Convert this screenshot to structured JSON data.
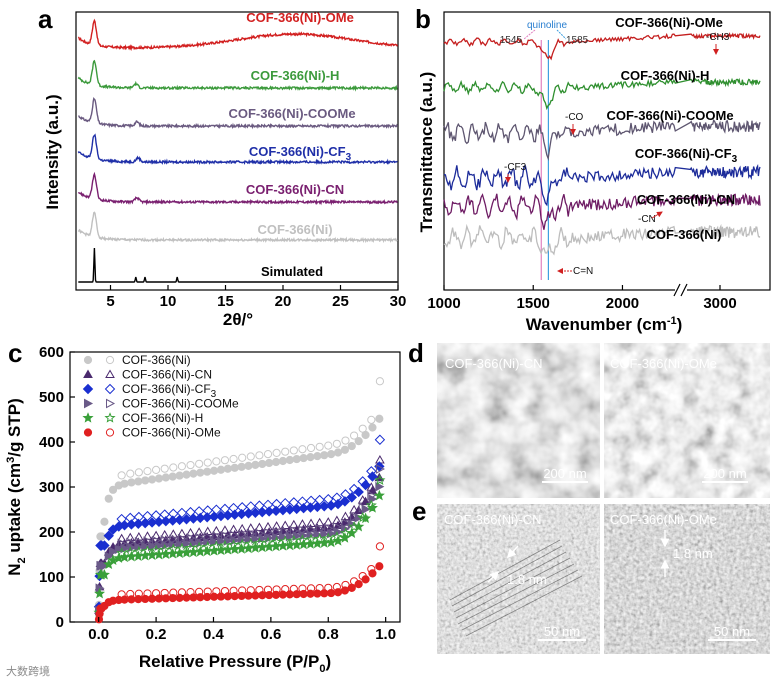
{
  "panel_labels": {
    "a": "a",
    "b": "b",
    "c": "c",
    "d": "d",
    "e": "e"
  },
  "chart_data": [
    {
      "type": "line",
      "panel": "a",
      "xlabel": "2θ/°",
      "ylabel": "Intensity (a.u.)",
      "xlim": [
        2,
        30
      ],
      "xticks": [
        5,
        10,
        15,
        20,
        25,
        30
      ],
      "series": [
        {
          "name": "COF-366(Ni)-OMe",
          "color": "#d22020",
          "peaks": [
            3.6
          ],
          "halo": true
        },
        {
          "name": "COF-366(Ni)-H",
          "color": "#3c9a3c",
          "peaks": [
            3.6,
            7.2
          ]
        },
        {
          "name": "COF-366(Ni)-COOMe",
          "color": "#6a5a80",
          "peaks": [
            3.6,
            7.3
          ]
        },
        {
          "name": "COF-366(Ni)-CF3",
          "label_main": "COF-366(Ni)-CF",
          "label_sub": "3",
          "color": "#1f2fa8",
          "peaks": [
            3.6,
            7.4
          ]
        },
        {
          "name": "COF-366(Ni)-CN",
          "color": "#7a2070",
          "peaks": [
            3.6,
            7.3
          ]
        },
        {
          "name": "COF-366(Ni)",
          "color": "#c0c0c0",
          "peaks": [
            3.6
          ]
        },
        {
          "name": "Simulated",
          "color": "#000000",
          "peaks": [
            3.6,
            7.2,
            8.0,
            10.8
          ]
        }
      ]
    },
    {
      "type": "line",
      "panel": "b",
      "xlabel_main": "Wavenumber (cm",
      "xlabel_sup": "-1",
      "xlabel_end": ")",
      "ylabel": "Transmittance (a.u.)",
      "xticks": [
        1000,
        1500,
        2000,
        3000
      ],
      "axis_break": true,
      "markers": [
        {
          "label": "1545",
          "wavenumber": 1545,
          "color": "#e080c0"
        },
        {
          "label": "1585",
          "wavenumber": 1585,
          "color": "#40a0e0"
        }
      ],
      "marker_title": "quinoline",
      "annotations": [
        "-CH3",
        "-CO",
        "-CF3",
        "-CN",
        "C=N"
      ],
      "series": [
        {
          "name": "COF-366(Ni)-OMe",
          "color": "#c41e1e"
        },
        {
          "name": "COF-366(Ni)-H",
          "color": "#2f8f2f"
        },
        {
          "name": "COF-366(Ni)-COOMe",
          "color": "#5e5670"
        },
        {
          "name": "COF-366(Ni)-CF3",
          "label_main": "COF-366(Ni)-CF",
          "label_sub": "3",
          "color": "#1d2c9a"
        },
        {
          "name": "COF-366(Ni)-CN",
          "color": "#6e1c64"
        },
        {
          "name": "COF-366(Ni)",
          "color": "#bdbdbd"
        }
      ]
    },
    {
      "type": "scatter",
      "panel": "c",
      "xlabel_main": "Relative Pressure (P/P",
      "xlabel_sub": "0",
      "xlabel_end": ")",
      "ylabel_main": "N",
      "ylabel_sub": "2",
      "ylabel_mid": " uptake (cm",
      "ylabel_sup": "3",
      "ylabel_end": "/g STP)",
      "xlim": [
        0.0,
        1.0
      ],
      "ylim": [
        0,
        600
      ],
      "xticks": [
        0.0,
        0.2,
        0.4,
        0.6,
        0.8,
        1.0
      ],
      "yticks": [
        0,
        100,
        200,
        300,
        400,
        500,
        600
      ],
      "series": [
        {
          "name": "COF-366(Ni)",
          "color": "#c8c8c8",
          "marker": "circle",
          "q0": 190,
          "qm": 300,
          "slope": 90,
          "qend": 450,
          "desorb_gap": 20,
          "desorb_top": 535
        },
        {
          "name": "COF-366(Ni)-CN",
          "color": "#4a2a6e",
          "marker": "triangle-up",
          "q0": 130,
          "qm": 170,
          "slope": 50,
          "qend": 330,
          "desorb_gap": 12,
          "desorb_top": 360
        },
        {
          "name": "COF-366(Ni)-CF3",
          "label_main": "COF-366(Ni)-CF",
          "label_sub": "3",
          "color": "#1a2fd0",
          "marker": "diamond",
          "q0": 170,
          "qm": 210,
          "slope": 60,
          "qend": 350,
          "desorb_gap": 15,
          "desorb_top": 405
        },
        {
          "name": "COF-366(Ni)-COOMe",
          "color": "#6a5a88",
          "marker": "triangle-right",
          "q0": 125,
          "qm": 160,
          "slope": 45,
          "qend": 310,
          "desorb_gap": 12,
          "desorb_top": 340
        },
        {
          "name": "COF-366(Ni)-H",
          "color": "#3aa03a",
          "marker": "star",
          "q0": 105,
          "qm": 140,
          "slope": 45,
          "qend": 290,
          "desorb_gap": 10,
          "desorb_top": 315
        },
        {
          "name": "COF-366(Ni)-OMe",
          "color": "#e02020",
          "marker": "circle-half",
          "q0": 30,
          "qm": 48,
          "slope": 20,
          "qend": 130,
          "desorb_gap": 12,
          "desorb_top": 168
        }
      ]
    }
  ],
  "micrographs": {
    "d_left": {
      "title": "COF-366(Ni)-CN",
      "scale": "200 nm"
    },
    "d_right": {
      "title": "COF-366(Ni)-OMe",
      "scale": "200 nm"
    },
    "e_left": {
      "title": "COF-366(Ni)-CN",
      "spacing": "1.8 nm",
      "scale": "50 nm"
    },
    "e_right": {
      "title": "COF-366(Ni)-OMe",
      "spacing": "1.8 nm",
      "scale": "50 nm"
    }
  },
  "watermark": "大数跨境"
}
